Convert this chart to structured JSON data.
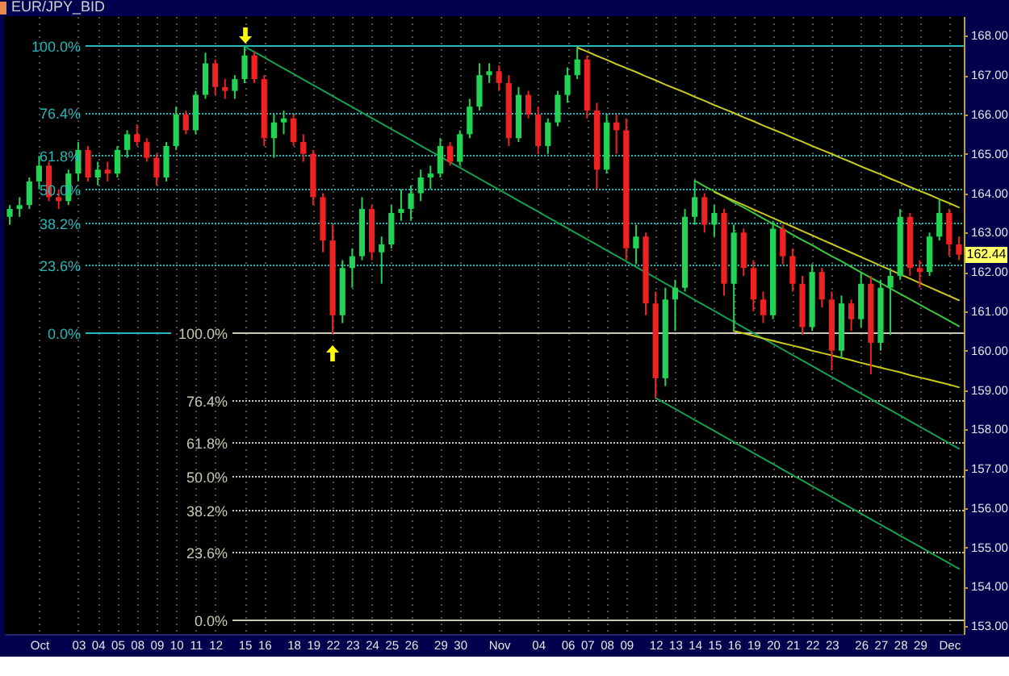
{
  "chart_data": {
    "type": "candlestick",
    "title": "EUR/JPY_BID",
    "categories": [
      null,
      null,
      null,
      "Oct",
      null,
      null,
      null,
      "03",
      null,
      "04",
      null,
      "05",
      null,
      "08",
      null,
      "09",
      null,
      "10",
      null,
      "11",
      null,
      "12",
      null,
      null,
      "15",
      null,
      "16",
      null,
      null,
      "18",
      null,
      "19",
      null,
      "22",
      null,
      "23",
      null,
      "24",
      null,
      "25",
      null,
      "26",
      null,
      null,
      "29",
      null,
      "30",
      null,
      null,
      null,
      "Nov",
      null,
      null,
      null,
      "04",
      null,
      null,
      "06",
      null,
      "07",
      null,
      "08",
      null,
      "09",
      null,
      null,
      "12",
      null,
      "13",
      null,
      "14",
      null,
      "15",
      null,
      "16",
      null,
      "19",
      null,
      "20",
      null,
      "21",
      null,
      "22",
      null,
      "23",
      null,
      null,
      "26",
      null,
      "27",
      null,
      "28",
      null,
      "29",
      null,
      null,
      "Dec",
      null
    ],
    "ohlc": [
      [
        163.4,
        163.7,
        163.2,
        163.6
      ],
      [
        163.6,
        163.9,
        163.4,
        163.7
      ],
      [
        163.7,
        164.4,
        163.6,
        164.3
      ],
      [
        164.3,
        164.95,
        164.1,
        164.7
      ],
      [
        164.7,
        164.8,
        163.8,
        163.9
      ],
      [
        163.9,
        164.1,
        163.6,
        163.8
      ],
      [
        163.8,
        164.6,
        163.7,
        164.5
      ],
      [
        164.5,
        165.3,
        164.3,
        165.1
      ],
      [
        165.1,
        165.2,
        164.3,
        164.4
      ],
      [
        164.4,
        164.8,
        164.2,
        164.6
      ],
      [
        164.6,
        164.8,
        164.3,
        164.5
      ],
      [
        164.5,
        165.2,
        164.4,
        165.1
      ],
      [
        165.1,
        165.6,
        164.9,
        165.5
      ],
      [
        165.5,
        165.75,
        165.2,
        165.3
      ],
      [
        165.3,
        165.4,
        164.8,
        164.9
      ],
      [
        164.9,
        165.0,
        164.2,
        164.4
      ],
      [
        164.4,
        165.3,
        164.3,
        165.2
      ],
      [
        165.2,
        166.2,
        165.1,
        166.0
      ],
      [
        166.0,
        166.1,
        165.5,
        165.6
      ],
      [
        165.6,
        166.6,
        165.5,
        166.5
      ],
      [
        166.5,
        167.57,
        166.4,
        167.3
      ],
      [
        167.3,
        167.4,
        166.5,
        166.7
      ],
      [
        166.7,
        166.9,
        166.4,
        166.6
      ],
      [
        166.6,
        167.0,
        166.4,
        166.9
      ],
      [
        166.9,
        167.73,
        166.8,
        167.5
      ],
      [
        167.5,
        167.6,
        166.8,
        166.9
      ],
      [
        166.9,
        167.0,
        165.2,
        165.4
      ],
      [
        165.4,
        166.0,
        164.9,
        165.8
      ],
      [
        165.8,
        166.1,
        165.5,
        165.9
      ],
      [
        165.9,
        166.0,
        165.2,
        165.3
      ],
      [
        165.3,
        165.5,
        164.8,
        165.0
      ],
      [
        165.0,
        165.1,
        163.7,
        163.9
      ],
      [
        163.9,
        164.0,
        162.5,
        162.8
      ],
      [
        162.8,
        163.2,
        160.43,
        160.9
      ],
      [
        160.9,
        162.3,
        160.7,
        162.1
      ],
      [
        162.1,
        162.6,
        161.6,
        162.4
      ],
      [
        162.4,
        163.9,
        162.3,
        163.6
      ],
      [
        163.6,
        163.7,
        162.3,
        162.5
      ],
      [
        162.5,
        162.9,
        161.7,
        162.7
      ],
      [
        162.7,
        163.7,
        162.6,
        163.5
      ],
      [
        163.5,
        164.1,
        163.3,
        163.6
      ],
      [
        163.6,
        164.2,
        163.3,
        164.0
      ],
      [
        164.0,
        164.6,
        163.8,
        164.4
      ],
      [
        164.4,
        164.7,
        164.1,
        164.5
      ],
      [
        164.5,
        165.4,
        164.4,
        165.2
      ],
      [
        165.2,
        165.3,
        164.7,
        164.8
      ],
      [
        164.8,
        165.6,
        164.7,
        165.5
      ],
      [
        165.5,
        166.4,
        165.4,
        166.2
      ],
      [
        166.2,
        167.3,
        166.1,
        167.0
      ],
      [
        167.0,
        167.3,
        166.8,
        167.1
      ],
      [
        167.1,
        167.25,
        166.6,
        166.8
      ],
      [
        166.8,
        167.0,
        165.2,
        165.4
      ],
      [
        165.4,
        166.7,
        165.3,
        166.5
      ],
      [
        166.5,
        166.6,
        165.9,
        166.0
      ],
      [
        166.0,
        166.2,
        165.0,
        165.2
      ],
      [
        165.2,
        165.9,
        165.0,
        165.8
      ],
      [
        165.8,
        166.6,
        165.7,
        166.5
      ],
      [
        166.5,
        167.2,
        166.3,
        167.0
      ],
      [
        167.0,
        167.7,
        166.9,
        167.4
      ],
      [
        167.4,
        167.5,
        165.9,
        166.1
      ],
      [
        166.1,
        166.3,
        164.1,
        164.6
      ],
      [
        164.6,
        166.0,
        164.5,
        165.8
      ],
      [
        165.8,
        166.0,
        165.0,
        165.6
      ],
      [
        165.6,
        165.9,
        162.3,
        162.6
      ],
      [
        162.6,
        163.2,
        162.2,
        162.9
      ],
      [
        162.9,
        163.0,
        160.9,
        161.2
      ],
      [
        161.2,
        161.5,
        158.8,
        159.3
      ],
      [
        159.3,
        161.6,
        159.1,
        161.3
      ],
      [
        161.3,
        161.8,
        160.5,
        161.6
      ],
      [
        161.6,
        163.6,
        161.5,
        163.4
      ],
      [
        163.4,
        164.32,
        163.2,
        163.9
      ],
      [
        163.9,
        164.0,
        163.0,
        163.2
      ],
      [
        163.2,
        163.7,
        162.9,
        163.5
      ],
      [
        163.5,
        163.6,
        161.4,
        161.7
      ],
      [
        161.7,
        163.2,
        160.5,
        163.0
      ],
      [
        163.0,
        163.1,
        161.9,
        162.1
      ],
      [
        162.1,
        162.3,
        161.0,
        161.3
      ],
      [
        161.3,
        161.5,
        160.7,
        160.9
      ],
      [
        160.9,
        163.3,
        160.8,
        163.1
      ],
      [
        163.1,
        163.2,
        162.2,
        162.4
      ],
      [
        162.4,
        162.6,
        161.5,
        161.7
      ],
      [
        161.7,
        161.9,
        160.4,
        160.6
      ],
      [
        160.6,
        162.2,
        160.5,
        162.0
      ],
      [
        162.0,
        162.1,
        161.1,
        161.3
      ],
      [
        161.3,
        161.5,
        159.5,
        160.0
      ],
      [
        160.0,
        161.4,
        159.8,
        161.2
      ],
      [
        161.2,
        161.3,
        160.5,
        160.8
      ],
      [
        160.8,
        162.0,
        160.6,
        161.7
      ],
      [
        161.7,
        161.9,
        159.4,
        160.2
      ],
      [
        160.2,
        161.8,
        160.0,
        161.6
      ],
      [
        161.6,
        162.1,
        160.4,
        161.9
      ],
      [
        161.9,
        163.6,
        161.8,
        163.4
      ],
      [
        163.4,
        163.5,
        161.9,
        162.1
      ],
      [
        162.1,
        162.3,
        161.6,
        162.0
      ],
      [
        162.0,
        163.0,
        161.9,
        162.9
      ],
      [
        162.9,
        163.85,
        162.8,
        163.5
      ],
      [
        163.5,
        163.6,
        162.4,
        162.7
      ],
      [
        162.7,
        162.9,
        162.3,
        162.44
      ]
    ],
    "colors": [
      "#22d455",
      "#22d455",
      "#22d455",
      "#22d455",
      "#ee2222",
      "#ee2222",
      "#22d455",
      "#22d455",
      "#ee2222",
      "#22d455",
      "#ee2222",
      "#22d455",
      "#22d455",
      "#ee2222",
      "#ee2222",
      "#ee2222",
      "#22d455",
      "#22d455",
      "#ee2222",
      "#22d455",
      "#22d455",
      "#ee2222",
      "#ee2222",
      "#22d455",
      "#22d455",
      "#ee2222",
      "#ee2222",
      "#22d455",
      "#22d455",
      "#ee2222",
      "#ee2222",
      "#ee2222",
      "#ee2222",
      "#ee2222",
      "#22d455",
      "#22d455",
      "#22d455",
      "#ee2222",
      "#22d455",
      "#22d455",
      "#22d455",
      "#22d455",
      "#22d455",
      "#22d455",
      "#22d455",
      "#ee2222",
      "#22d455",
      "#22d455",
      "#22d455",
      "#22d455",
      "#ee2222",
      "#ee2222",
      "#22d455",
      "#ee2222",
      "#ee2222",
      "#22d455",
      "#22d455",
      "#22d455",
      "#22d455",
      "#ee2222",
      "#ee2222",
      "#22d455",
      "#ee2222",
      "#ee2222",
      "#22d455",
      "#ee2222",
      "#ee2222",
      "#22d455",
      "#22d455",
      "#22d455",
      "#22d455",
      "#ee2222",
      "#22d455",
      "#ee2222",
      "#22d455",
      "#ee2222",
      "#ee2222",
      "#ee2222",
      "#22d455",
      "#ee2222",
      "#ee2222",
      "#ee2222",
      "#22d455",
      "#ee2222",
      "#ee2222",
      "#22d455",
      "#ee2222",
      "#22d455",
      "#ee2222",
      "#22d455",
      "#22d455",
      "#22d455",
      "#ee2222",
      "#ee2222",
      "#22d455",
      "#22d455",
      "#ee2222",
      "#ee2222"
    ],
    "series": [
      {
        "type": "line",
        "color": "#14a050",
        "values": [
          null,
          null,
          null,
          null,
          null,
          null,
          null,
          null,
          null,
          null,
          null,
          null,
          null,
          null,
          null,
          null,
          null,
          null,
          null,
          null,
          null,
          null,
          null,
          null,
          167.73,
          167.59,
          167.45,
          167.31,
          167.17,
          167.03,
          166.89,
          166.75,
          166.61,
          166.47,
          166.33,
          166.19,
          166.05,
          165.91,
          165.77,
          165.63,
          165.49,
          165.35,
          165.21,
          165.07,
          164.93,
          164.79,
          164.65,
          164.51,
          164.37,
          164.23,
          164.09,
          163.95,
          163.81,
          163.67,
          163.53,
          163.39,
          163.25,
          163.11,
          162.97,
          162.83,
          162.69,
          162.55,
          162.41,
          162.27,
          162.13,
          161.99,
          161.85,
          161.71,
          161.57,
          161.43,
          161.29,
          161.15,
          161.01,
          160.87,
          160.73,
          160.59,
          160.45,
          160.31,
          160.17,
          160.03,
          159.89,
          159.75,
          159.61,
          159.47,
          159.33,
          159.19,
          159.05,
          158.91,
          158.77,
          158.63,
          158.49,
          158.35,
          158.21,
          158.07,
          157.93,
          157.79,
          157.65,
          157.51
        ]
      },
      {
        "type": "line",
        "color": "#14a050",
        "values": [
          null,
          null,
          null,
          null,
          null,
          null,
          null,
          null,
          null,
          null,
          null,
          null,
          null,
          null,
          null,
          null,
          null,
          null,
          null,
          null,
          null,
          null,
          null,
          null,
          null,
          null,
          null,
          null,
          null,
          null,
          null,
          null,
          null,
          null,
          null,
          null,
          null,
          null,
          null,
          null,
          null,
          null,
          null,
          null,
          null,
          null,
          null,
          null,
          null,
          null,
          null,
          null,
          null,
          null,
          null,
          null,
          null,
          null,
          null,
          null,
          null,
          null,
          null,
          null,
          null,
          null,
          158.8,
          158.66,
          158.52,
          158.38,
          158.24,
          158.1,
          157.96,
          157.82,
          157.68,
          157.54,
          157.4,
          157.26,
          157.12,
          156.98,
          156.84,
          156.7,
          156.56,
          156.42,
          156.28,
          156.14,
          156.0,
          155.86,
          155.72,
          155.58,
          155.44,
          155.3,
          155.16,
          155.02,
          154.88,
          154.74,
          154.6,
          154.46
        ]
      },
      {
        "type": "line",
        "color": "#c8c81e",
        "values": [
          null,
          null,
          null,
          null,
          null,
          null,
          null,
          null,
          null,
          null,
          null,
          null,
          null,
          null,
          null,
          null,
          null,
          null,
          null,
          null,
          null,
          null,
          null,
          null,
          null,
          null,
          null,
          null,
          null,
          null,
          null,
          null,
          null,
          null,
          null,
          null,
          null,
          null,
          null,
          null,
          null,
          null,
          null,
          null,
          null,
          null,
          null,
          null,
          null,
          null,
          null,
          null,
          null,
          null,
          null,
          null,
          null,
          null,
          167.7,
          167.6,
          167.49,
          167.39,
          167.28,
          167.18,
          167.08,
          166.97,
          166.87,
          166.76,
          166.66,
          166.56,
          166.45,
          166.35,
          166.24,
          166.14,
          166.04,
          165.93,
          165.83,
          165.72,
          165.62,
          165.52,
          165.41,
          165.31,
          165.2,
          165.1,
          165.0,
          164.89,
          164.79,
          164.68,
          164.58,
          164.48,
          164.37,
          164.27,
          164.16,
          164.06,
          163.96,
          163.85,
          163.75,
          163.64
        ]
      },
      {
        "type": "line",
        "color": "#3cc83c",
        "values": [
          null,
          null,
          null,
          null,
          null,
          null,
          null,
          null,
          null,
          null,
          null,
          null,
          null,
          null,
          null,
          null,
          null,
          null,
          null,
          null,
          null,
          null,
          null,
          null,
          null,
          null,
          null,
          null,
          null,
          null,
          null,
          null,
          null,
          null,
          null,
          null,
          null,
          null,
          null,
          null,
          null,
          null,
          null,
          null,
          null,
          null,
          null,
          null,
          null,
          null,
          null,
          null,
          null,
          null,
          null,
          null,
          null,
          null,
          null,
          null,
          null,
          null,
          null,
          null,
          null,
          null,
          null,
          null,
          null,
          null,
          164.32,
          164.18,
          164.05,
          163.91,
          163.77,
          163.64,
          163.5,
          163.36,
          163.22,
          163.09,
          162.95,
          162.81,
          162.68,
          162.54,
          162.4,
          162.27,
          162.13,
          161.99,
          161.85,
          161.72,
          161.58,
          161.44,
          161.31,
          161.17,
          161.03,
          160.9,
          160.76,
          160.62
        ]
      },
      {
        "type": "line",
        "color": "#c8c81e",
        "values": [
          null,
          null,
          null,
          null,
          null,
          null,
          null,
          null,
          null,
          null,
          null,
          null,
          null,
          null,
          null,
          null,
          null,
          null,
          null,
          null,
          null,
          null,
          null,
          null,
          null,
          null,
          null,
          null,
          null,
          null,
          null,
          null,
          null,
          null,
          null,
          null,
          null,
          null,
          null,
          null,
          null,
          null,
          null,
          null,
          null,
          null,
          null,
          null,
          null,
          null,
          null,
          null,
          null,
          null,
          null,
          null,
          null,
          null,
          null,
          null,
          null,
          null,
          null,
          null,
          null,
          null,
          null,
          null,
          null,
          null,
          null,
          null,
          164.03,
          163.92,
          163.81,
          163.7,
          163.59,
          163.48,
          163.37,
          163.26,
          163.15,
          163.04,
          162.93,
          162.82,
          162.71,
          162.6,
          162.49,
          162.38,
          162.27,
          162.16,
          162.05,
          161.94,
          161.83,
          161.72,
          161.61,
          161.5,
          161.39,
          161.28
        ]
      },
      {
        "type": "line",
        "color": "#c8c81e",
        "values": [
          null,
          null,
          null,
          null,
          null,
          null,
          null,
          null,
          null,
          null,
          null,
          null,
          null,
          null,
          null,
          null,
          null,
          null,
          null,
          null,
          null,
          null,
          null,
          null,
          null,
          null,
          null,
          null,
          null,
          null,
          null,
          null,
          null,
          null,
          null,
          null,
          null,
          null,
          null,
          null,
          null,
          null,
          null,
          null,
          null,
          null,
          null,
          null,
          null,
          null,
          null,
          null,
          null,
          null,
          null,
          null,
          null,
          null,
          null,
          null,
          null,
          null,
          null,
          null,
          null,
          null,
          null,
          null,
          null,
          null,
          null,
          null,
          null,
          null,
          160.5,
          160.44,
          160.38,
          160.31,
          160.25,
          160.19,
          160.13,
          160.07,
          160.0,
          159.94,
          159.88,
          159.82,
          159.76,
          159.69,
          159.63,
          159.57,
          159.51,
          159.45,
          159.38,
          159.32,
          159.26,
          159.2,
          159.14,
          159.07
        ]
      }
    ],
    "ref_lines": [
      {
        "axis": "y",
        "value": 167.73,
        "color": "#26b8b8",
        "line_style": "solid"
      },
      {
        "axis": "y",
        "value": 166.01,
        "color": "#26b8b8",
        "line_style": "dotted"
      },
      {
        "axis": "y",
        "value": 164.94,
        "color": "#26b8b8",
        "line_style": "dotted"
      },
      {
        "axis": "y",
        "value": 164.08,
        "color": "#26b8b8",
        "line_style": "dotted"
      },
      {
        "axis": "y",
        "value": 163.22,
        "color": "#26b8b8",
        "line_style": "dotted"
      },
      {
        "axis": "y",
        "value": 162.15,
        "color": "#26b8b8",
        "line_style": "dotted"
      },
      {
        "axis": "y",
        "value": 160.43,
        "color": "#26b8b8",
        "line_style": "solid"
      },
      {
        "axis": "y",
        "value": 160.43,
        "color": "#c8c8b4",
        "line_style": "solid"
      },
      {
        "axis": "y",
        "value": 158.71,
        "color": "#c8c8b4",
        "line_style": "dotted"
      },
      {
        "axis": "y",
        "value": 157.64,
        "color": "#c8c8b4",
        "line_style": "dotted"
      },
      {
        "axis": "y",
        "value": 156.78,
        "color": "#c8c8b4",
        "line_style": "dotted"
      },
      {
        "axis": "y",
        "value": 155.92,
        "color": "#c8c8b4",
        "line_style": "dotted"
      },
      {
        "axis": "y",
        "value": 154.85,
        "color": "#c8c8b4",
        "line_style": "dotted"
      },
      {
        "axis": "y",
        "value": 153.13,
        "color": "#c8c8b4",
        "line_style": "solid"
      }
    ],
    "annotations": [
      "162.44",
      "100.0%",
      "76.4%",
      "61.8%",
      "50.0%",
      "38.2%",
      "23.6%",
      "0.0%",
      "100.0%",
      "76.4%",
      "61.8%",
      "50.0%",
      "38.2%",
      "23.6%",
      "0.0%"
    ],
    "ylim": [
      152.8,
      168.5
    ],
    "yticks": [
      {
        "value": 153,
        "label": "153.00"
      },
      {
        "value": 154,
        "label": "154.00"
      },
      {
        "value": 155,
        "label": "155.00"
      },
      {
        "value": 156,
        "label": "156.00"
      },
      {
        "value": 157,
        "label": "157.00"
      },
      {
        "value": 158,
        "label": "158.00"
      },
      {
        "value": 159,
        "label": "159.00"
      },
      {
        "value": 160,
        "label": "160.00"
      },
      {
        "value": 161,
        "label": "161.00"
      },
      {
        "value": 162,
        "label": "162.00"
      },
      {
        "value": 163,
        "label": "163.00"
      },
      {
        "value": 164,
        "label": "164.00"
      },
      {
        "value": 165,
        "label": "165.00"
      },
      {
        "value": 166,
        "label": "166.00"
      },
      {
        "value": 167,
        "label": "167.00"
      },
      {
        "value": 168,
        "label": "168.00"
      }
    ],
    "grid": "x"
  }
}
